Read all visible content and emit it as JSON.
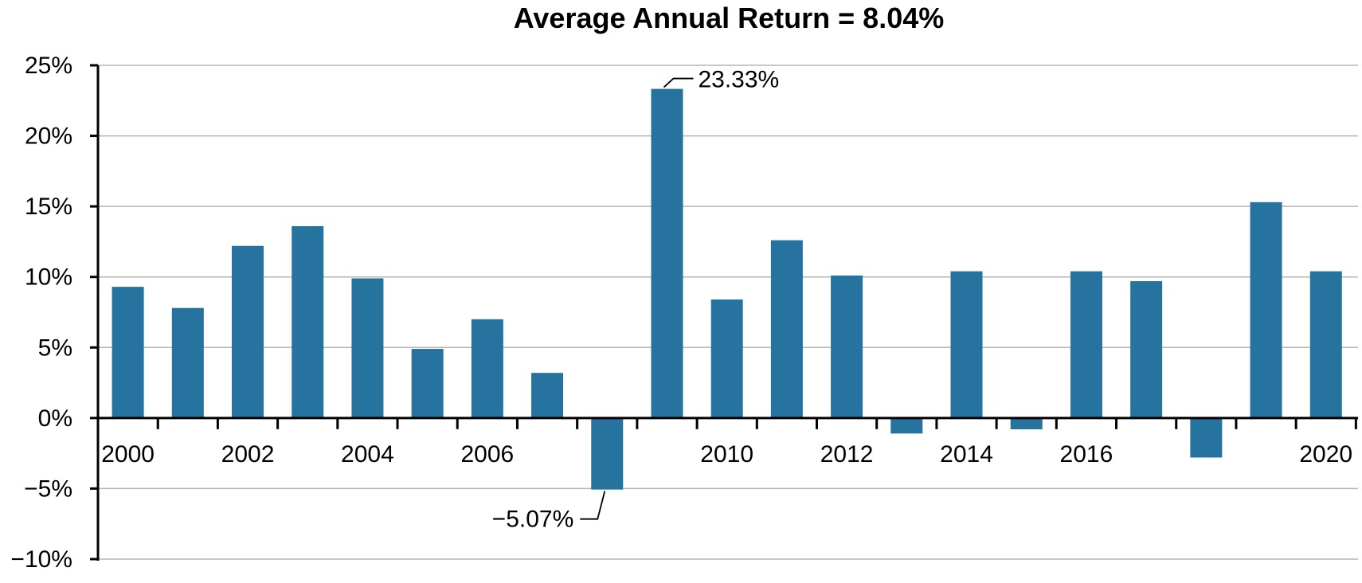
{
  "chart_data": {
    "type": "bar",
    "title": "Average Annual Return = 8.04%",
    "xlabel": "",
    "ylabel": "",
    "ylim": [
      -10,
      25
    ],
    "y_ticks": [
      25,
      20,
      15,
      10,
      5,
      0,
      -5,
      -10
    ],
    "y_tick_labels": [
      "25%",
      "20%",
      "15%",
      "10%",
      "5%",
      "0%",
      "−5%",
      "−10%"
    ],
    "x_tick_labels": [
      "2000",
      "2002",
      "2004",
      "2006",
      "2010",
      "2012",
      "2014",
      "2016",
      "2020"
    ],
    "grid": true,
    "bar_color": "#2673a0",
    "categories": [
      "2000",
      "2001",
      "2002",
      "2003",
      "2004",
      "2005",
      "2006",
      "2007",
      "2008",
      "2009",
      "2010",
      "2011",
      "2012",
      "2013",
      "2014",
      "2015",
      "2016",
      "2017",
      "2018",
      "2019",
      "2020"
    ],
    "values": [
      9.3,
      7.8,
      12.2,
      13.6,
      9.9,
      4.9,
      7.0,
      3.2,
      -5.07,
      23.33,
      8.4,
      12.6,
      10.1,
      -1.1,
      10.4,
      -0.8,
      10.4,
      9.7,
      -2.8,
      15.3,
      10.4
    ],
    "annotations": [
      {
        "category": "2009",
        "text": "23.33%"
      },
      {
        "category": "2008",
        "text": "−5.07%"
      }
    ]
  }
}
